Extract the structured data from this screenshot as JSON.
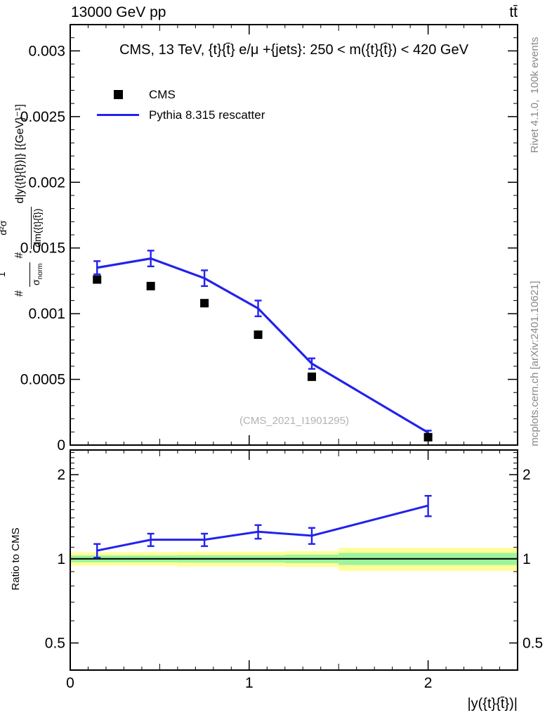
{
  "header": {
    "left": "13000 GeV pp",
    "right": "tt̄"
  },
  "main_panel": {
    "title": "CMS, 13 TeV, {t}{t̄} e/μ +{jets}: 250 < m({t}{t̄}) < 420 GeV",
    "watermark": "(CMS_2021_I1901295)",
    "ylabel": {
      "hash1": "#",
      "frac1_num": "1",
      "frac1_den_base": "σ",
      "frac1_den_sub": "norm",
      "hash2": "#",
      "frac2_num": "d²σ",
      "frac2_den": "dm({t}{t̄})",
      "tail": "d|y({t}{t̄})|} [{GeV}⁻¹]"
    }
  },
  "legend": {
    "items": [
      {
        "label": "CMS",
        "marker": "black-square"
      },
      {
        "label": "Pythia 8.315 rescatter",
        "marker": "blue-line"
      }
    ]
  },
  "ratio_panel": {
    "ylabel": "Ratio to CMS"
  },
  "xaxis": {
    "label": "|y({t}{t̄})|"
  },
  "side_notes": {
    "generator": "Rivet 4.1.0,  100k events",
    "source": "mcplots.cern.ch [arXiv:2401.10621]"
  },
  "colors": {
    "mc_line": "#2222ee",
    "data_marker": "#000000",
    "band_yellow": "#ffff99",
    "band_green": "#9cf59c",
    "watermark": "#b3b3b3",
    "side_note": "#888888"
  },
  "chart_data": {
    "type": "line",
    "title": "CMS, 13 TeV, {t}{t̄} e/μ +{jets}: 250 < m({t}{t̄}) < 420 GeV",
    "xlabel": "|y({t}{t̄})|",
    "ylabel": "#1/σnorm #d²σ/dm({t}{t̄}) d|y({t}{t̄})|} [{GeV}⁻¹]",
    "x_values": [
      0.15,
      0.45,
      0.75,
      1.05,
      1.35,
      2.0
    ],
    "bin_edges": [
      0,
      0.3,
      0.6,
      0.9,
      1.2,
      1.5,
      2.5
    ],
    "series": [
      {
        "name": "CMS",
        "style": "scatter-square",
        "color": "#000000",
        "values": [
          0.00126,
          0.00121,
          0.00108,
          0.00084,
          0.00052,
          6e-05
        ]
      },
      {
        "name": "Pythia 8.315 rescatter",
        "style": "line-errorbars",
        "color": "#2222ee",
        "values": [
          0.00135,
          0.00142,
          0.00127,
          0.00104,
          0.00062,
          9.5e-05
        ],
        "errors": [
          5e-05,
          6e-05,
          6e-05,
          6e-05,
          4e-05,
          1.5e-05
        ]
      }
    ],
    "main_axis": {
      "xlim": [
        0,
        2.5
      ],
      "ylim": [
        0,
        0.0032
      ],
      "xticks": [
        0,
        1,
        2
      ],
      "xtick_labels": [
        "0",
        "1",
        "2"
      ],
      "x_minor_step": 0.1,
      "yticks": [
        0,
        0.0005,
        0.001,
        0.0015,
        0.002,
        0.0025,
        0.003
      ],
      "ytick_labels": [
        "0",
        "0.0005",
        "0.001",
        "0.0015",
        "0.002",
        "0.0025",
        "0.003"
      ],
      "y_minor_step": 0.0001,
      "grid": false,
      "legend_position": "top-left-inside"
    },
    "ratio_axis": {
      "scale": "log",
      "ylim": [
        0.4,
        2.45
      ],
      "yticks": [
        0.5,
        1,
        2
      ],
      "ytick_labels": [
        "0.5",
        "1",
        "2"
      ],
      "y_minor_ticks": [
        0.4,
        0.6,
        0.7,
        0.8,
        0.9,
        1.1,
        1.2,
        1.3,
        1.4,
        1.5,
        1.6,
        1.7,
        1.8,
        1.9,
        2.1,
        2.2,
        2.3,
        2.4
      ]
    },
    "ratio": {
      "name": "Ratio to CMS",
      "values": [
        1.07,
        1.17,
        1.17,
        1.25,
        1.21,
        1.55
      ],
      "errors": [
        0.06,
        0.06,
        0.06,
        0.07,
        0.08,
        0.13
      ],
      "unity_line": 1,
      "band_yellow_halfwidth": [
        0.055,
        0.055,
        0.06,
        0.06,
        0.065,
        0.095
      ],
      "band_green_halfwidth": [
        0.028,
        0.028,
        0.03,
        0.03,
        0.035,
        0.05
      ]
    }
  }
}
